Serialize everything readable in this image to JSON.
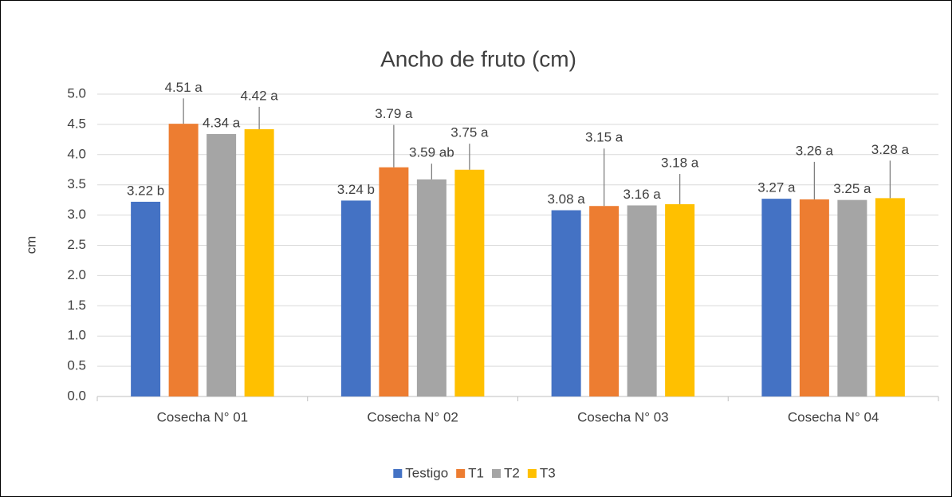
{
  "chart_data": {
    "type": "bar",
    "title": "Ancho de fruto (cm)",
    "ylabel": "cm",
    "categories": [
      "Cosecha N° 01",
      "Cosecha N° 02",
      "Cosecha N° 03",
      "Cosecha N° 04"
    ],
    "series": [
      {
        "name": "Testigo",
        "color": "#4472c4",
        "values": [
          3.22,
          3.24,
          3.08,
          3.27
        ],
        "value_labels": [
          "3.22 b",
          "3.24 b",
          "3.08 a",
          "3.27 a"
        ],
        "errors": [
          null,
          null,
          null,
          null
        ]
      },
      {
        "name": "T1",
        "color": "#ed7d31",
        "values": [
          4.51,
          3.79,
          3.15,
          3.26
        ],
        "value_labels": [
          "4.51 a",
          "3.79 a",
          "3.15 a",
          "3.26 a"
        ],
        "errors": [
          0.42,
          0.7,
          0.95,
          0.62
        ]
      },
      {
        "name": "T2",
        "color": "#a5a5a5",
        "values": [
          4.34,
          3.59,
          3.16,
          3.25
        ],
        "value_labels": [
          "4.34 a",
          "3.59 ab",
          "3.16 a",
          "3.25 a"
        ],
        "errors": [
          null,
          0.26,
          null,
          null
        ]
      },
      {
        "name": "T3",
        "color": "#ffc000",
        "values": [
          4.42,
          3.75,
          3.18,
          3.28
        ],
        "value_labels": [
          "4.42 a",
          "3.75 a",
          "3.18 a",
          "3.28 a"
        ],
        "errors": [
          0.37,
          0.43,
          0.5,
          0.62
        ]
      }
    ],
    "ylim": [
      0,
      5
    ],
    "yticks": [
      {
        "value": 0,
        "label": "0.0"
      },
      0.5,
      {
        "value": 1,
        "label": "1.0"
      },
      1.5,
      {
        "value": 2,
        "label": "2.0"
      },
      2.5,
      {
        "value": 3,
        "label": "3.0"
      },
      3.5,
      {
        "value": 4,
        "label": "4.0"
      },
      4.5,
      {
        "value": 5,
        "label": "5.0"
      }
    ],
    "grid": true,
    "legend": "bottom"
  }
}
